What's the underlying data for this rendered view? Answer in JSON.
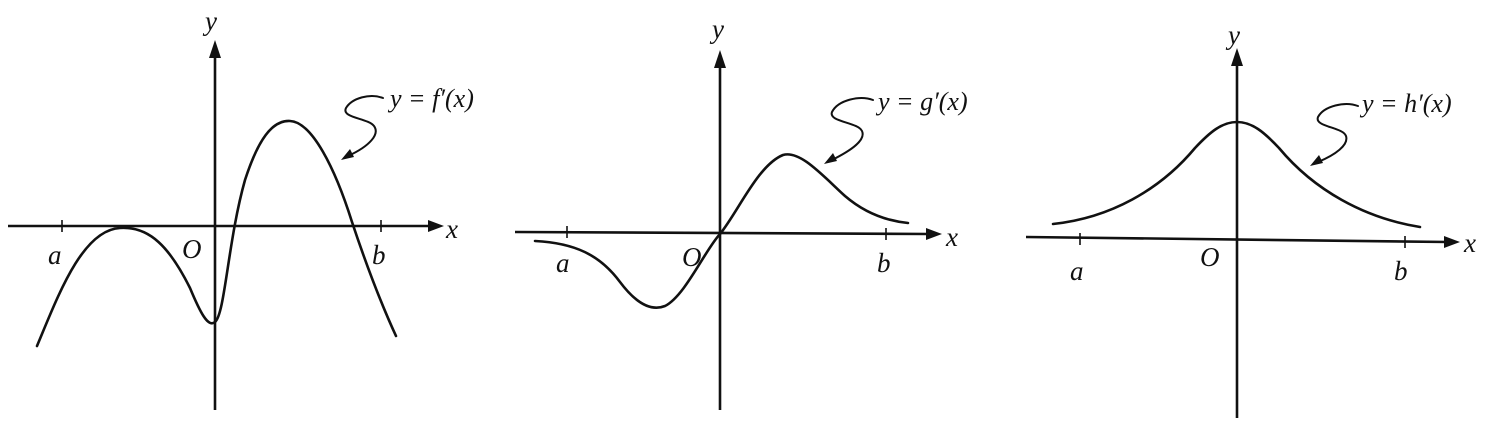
{
  "panels": [
    {
      "id": "f",
      "equation": "y = f′(x)",
      "axis_x": "x",
      "axis_y": "y",
      "origin": "O",
      "left_point": "a",
      "right_point": "b"
    },
    {
      "id": "g",
      "equation": "y = g′(x)",
      "axis_x": "x",
      "axis_y": "y",
      "origin": "O",
      "left_point": "a",
      "right_point": "b"
    },
    {
      "id": "h",
      "equation": "y = h′(x)",
      "axis_x": "x",
      "axis_y": "y",
      "origin": "O",
      "left_point": "a",
      "right_point": "b"
    }
  ]
}
